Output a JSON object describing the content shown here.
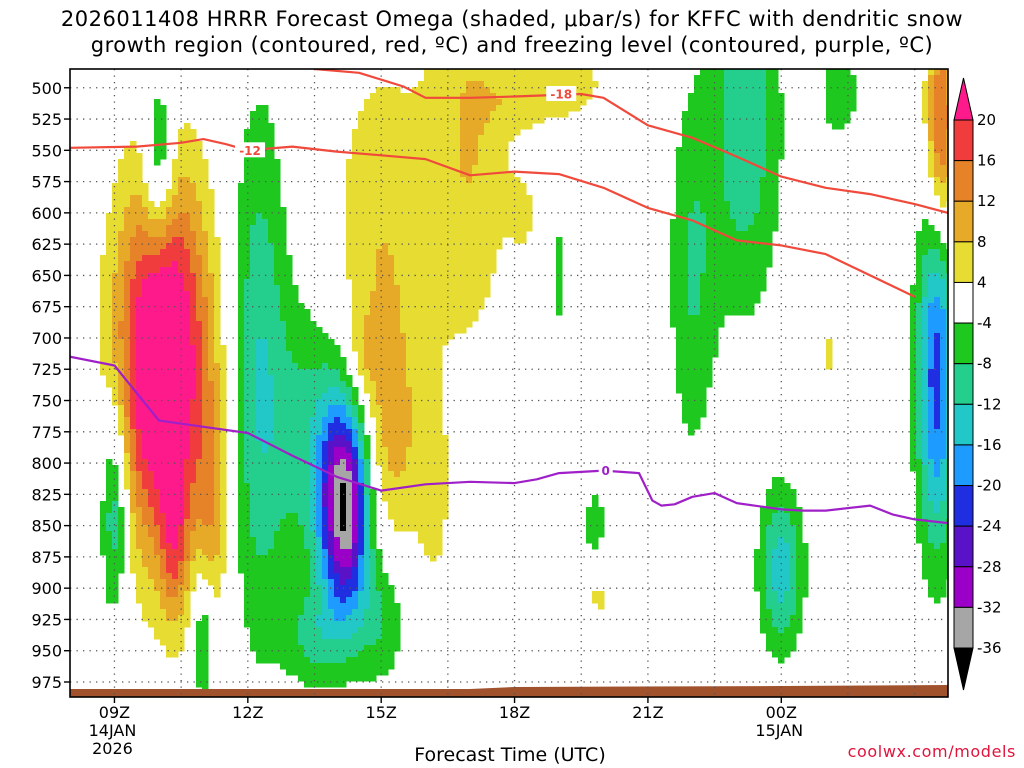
{
  "chart_data": {
    "type": "heatmap",
    "title_line1": "2026011408 HRRR Forecast Omega (shaded, μbar/s) for KFFC with dendritic snow",
    "title_line2": "growth region (contoured, red, ºC) and freezing level (contoured, purple, ºC)",
    "xlabel": "Forecast Time (UTC)",
    "credit": "coolwx.com/models",
    "xlim": [
      8.0,
      27.75
    ],
    "ylim": [
      987,
      485
    ],
    "y_ticks": [
      500,
      525,
      550,
      575,
      600,
      625,
      650,
      675,
      700,
      725,
      750,
      775,
      800,
      825,
      850,
      875,
      900,
      925,
      950,
      975
    ],
    "x_ticks": [
      {
        "t": 9,
        "label": "09Z",
        "sub1": "14JAN",
        "sub2": "2026"
      },
      {
        "t": 12,
        "label": "12Z"
      },
      {
        "t": 15,
        "label": "15Z"
      },
      {
        "t": 18,
        "label": "18Z"
      },
      {
        "t": 21,
        "label": "21Z"
      },
      {
        "t": 24,
        "label": "00Z",
        "sub1": "15JAN"
      }
    ],
    "colorbar": {
      "levels": [
        -36,
        -32,
        -28,
        -24,
        -20,
        -16,
        -12,
        -8,
        -4,
        4,
        8,
        12,
        16,
        20
      ],
      "colors": [
        "#000000",
        "#a6a6a6",
        "#9a00c8",
        "#5a12c8",
        "#1e2ee0",
        "#1e9bff",
        "#22c8c8",
        "#24cf8e",
        "#1ec81e",
        "#ffffff",
        "#e6dc32",
        "#e6aa28",
        "#e68228",
        "#f03c3c",
        "#ff1a8c"
      ]
    },
    "contours": {
      "dgz_color": "#f04a3c",
      "freezing_color": "#a020c8",
      "dgz_minus12": [
        [
          8.0,
          548
        ],
        [
          9.5,
          547
        ],
        [
          10.5,
          544
        ],
        [
          11.0,
          541
        ],
        [
          11.5,
          545
        ],
        [
          12.0,
          550
        ],
        [
          13.0,
          547
        ],
        [
          14.0,
          551
        ],
        [
          15.0,
          554
        ],
        [
          16.0,
          557
        ],
        [
          17.0,
          570
        ],
        [
          18.0,
          567
        ],
        [
          19.0,
          569
        ],
        [
          20.0,
          580
        ],
        [
          21.0,
          596
        ],
        [
          22.0,
          606
        ],
        [
          23.0,
          622
        ],
        [
          24.0,
          626
        ],
        [
          25.0,
          633
        ],
        [
          26.0,
          650
        ],
        [
          27.0,
          667
        ]
      ],
      "dgz_minus12_label": "-12",
      "dgz_minus12_label_at": [
        12.05,
        550
      ],
      "dgz_minus18": [
        [
          13.5,
          485
        ],
        [
          14.5,
          488
        ],
        [
          15.5,
          499
        ],
        [
          16.0,
          508
        ],
        [
          17.0,
          508
        ],
        [
          18.0,
          507
        ],
        [
          19.5,
          505
        ],
        [
          20.0,
          508
        ],
        [
          21.0,
          530
        ],
        [
          22.0,
          540
        ],
        [
          23.0,
          555
        ],
        [
          24.0,
          571
        ],
        [
          25.0,
          580
        ],
        [
          26.0,
          585
        ],
        [
          27.0,
          593
        ],
        [
          27.75,
          600
        ]
      ],
      "dgz_minus18_label": "-18",
      "dgz_minus18_label_at": [
        19.05,
        505
      ],
      "freezing_0": [
        [
          8.0,
          715
        ],
        [
          9.0,
          722
        ],
        [
          9.5,
          744
        ],
        [
          10.0,
          766
        ],
        [
          11.0,
          771
        ],
        [
          12.0,
          776
        ],
        [
          12.5,
          785
        ],
        [
          13.0,
          794
        ],
        [
          14.0,
          811
        ],
        [
          15.0,
          822
        ],
        [
          16.0,
          817
        ],
        [
          17.0,
          815
        ],
        [
          18.0,
          816
        ],
        [
          18.5,
          813
        ],
        [
          19.0,
          808
        ],
        [
          20.0,
          806
        ],
        [
          20.8,
          808
        ],
        [
          21.1,
          830
        ],
        [
          21.3,
          834
        ],
        [
          21.6,
          833
        ],
        [
          22.0,
          827
        ],
        [
          22.5,
          824
        ],
        [
          23.0,
          832
        ],
        [
          24.0,
          837
        ],
        [
          24.5,
          838
        ],
        [
          25.0,
          838
        ],
        [
          26.0,
          834
        ],
        [
          26.5,
          841
        ],
        [
          27.0,
          845
        ],
        [
          27.75,
          848
        ]
      ],
      "freezing_label": "0",
      "freezing_label_at": [
        20.05,
        806
      ]
    }
  }
}
